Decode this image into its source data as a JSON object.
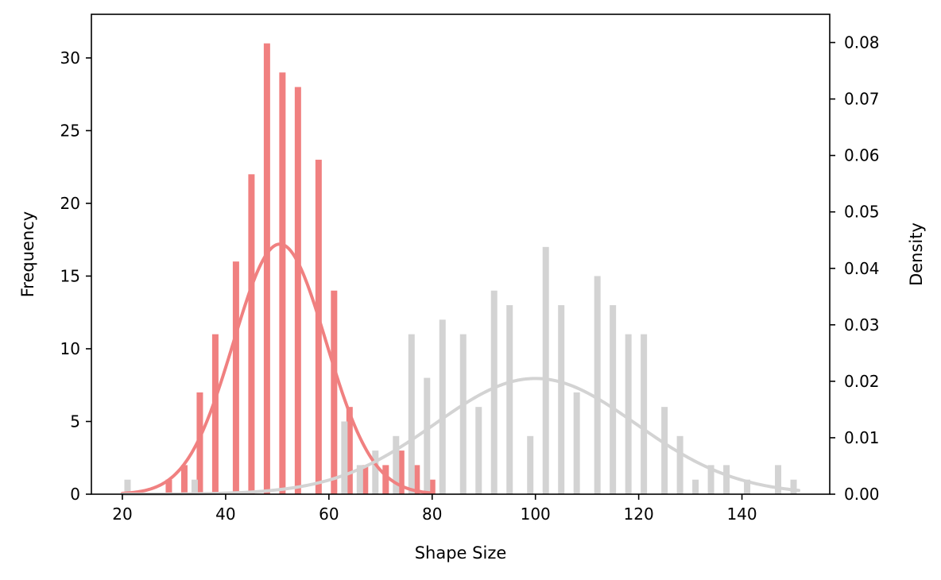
{
  "chart_data": {
    "type": "bar",
    "title": "",
    "xlabel": "Shape Size",
    "ylabel": "Frequency",
    "y2label": "Density",
    "xlim": [
      14,
      157
    ],
    "ylim": [
      0,
      33
    ],
    "y2lim": [
      0,
      0.085
    ],
    "xticks": [
      20,
      40,
      60,
      80,
      100,
      120,
      140
    ],
    "yticks": [
      0,
      5,
      10,
      15,
      20,
      25,
      30
    ],
    "y2ticks": [
      "0.00",
      "0.01",
      "0.02",
      "0.03",
      "0.04",
      "0.05",
      "0.06",
      "0.07",
      "0.08"
    ],
    "grid": false,
    "series": [
      {
        "color": "#f08080",
        "bins": [
          {
            "x": 29,
            "y": 1
          },
          {
            "x": 32,
            "y": 2
          },
          {
            "x": 35,
            "y": 7
          },
          {
            "x": 38,
            "y": 11
          },
          {
            "x": 42,
            "y": 16
          },
          {
            "x": 45,
            "y": 22
          },
          {
            "x": 48,
            "y": 31
          },
          {
            "x": 51,
            "y": 29
          },
          {
            "x": 54,
            "y": 28
          },
          {
            "x": 58,
            "y": 23
          },
          {
            "x": 61,
            "y": 14
          },
          {
            "x": 64,
            "y": 6
          },
          {
            "x": 67,
            "y": 2
          },
          {
            "x": 71,
            "y": 2
          },
          {
            "x": 74,
            "y": 3
          },
          {
            "x": 77,
            "y": 2
          },
          {
            "x": 80,
            "y": 1
          }
        ],
        "kde": {
          "mean": 50.5,
          "sd": 9.0,
          "peak": 0.0443,
          "range": [
            20,
            80
          ]
        }
      },
      {
        "color": "#d3d3d3",
        "bins": [
          {
            "x": 21,
            "y": 1
          },
          {
            "x": 34,
            "y": 1
          },
          {
            "x": 63,
            "y": 5
          },
          {
            "x": 66,
            "y": 2
          },
          {
            "x": 69,
            "y": 3
          },
          {
            "x": 73,
            "y": 4
          },
          {
            "x": 76,
            "y": 11
          },
          {
            "x": 79,
            "y": 8
          },
          {
            "x": 82,
            "y": 12
          },
          {
            "x": 86,
            "y": 11
          },
          {
            "x": 89,
            "y": 6
          },
          {
            "x": 92,
            "y": 14
          },
          {
            "x": 95,
            "y": 13
          },
          {
            "x": 99,
            "y": 4
          },
          {
            "x": 102,
            "y": 17
          },
          {
            "x": 105,
            "y": 13
          },
          {
            "x": 108,
            "y": 7
          },
          {
            "x": 112,
            "y": 15
          },
          {
            "x": 115,
            "y": 13
          },
          {
            "x": 118,
            "y": 11
          },
          {
            "x": 121,
            "y": 11
          },
          {
            "x": 125,
            "y": 6
          },
          {
            "x": 128,
            "y": 4
          },
          {
            "x": 131,
            "y": 1
          },
          {
            "x": 134,
            "y": 2
          },
          {
            "x": 137,
            "y": 2
          },
          {
            "x": 141,
            "y": 1
          },
          {
            "x": 147,
            "y": 2
          },
          {
            "x": 150,
            "y": 1
          }
        ],
        "kde": {
          "mean": 100,
          "sd": 19.5,
          "peak": 0.0205,
          "range": [
            20,
            151
          ]
        }
      }
    ]
  }
}
